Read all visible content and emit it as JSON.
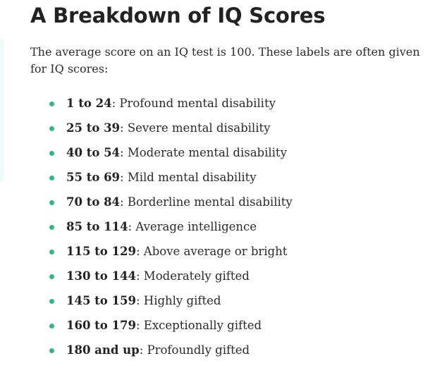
{
  "article": {
    "title": "A Breakdown of IQ Scores",
    "intro": "The average score on an IQ test is 100. These labels are often given for IQ scores:",
    "colors": {
      "bullet": "#2fb884",
      "accent_bar": "#eefafa"
    },
    "items": [
      {
        "range": "1 to 24",
        "label": ": Profound mental disability"
      },
      {
        "range": "25 to 39",
        "label": ": Severe mental disability"
      },
      {
        "range": "40 to 54",
        "label": ": Moderate mental disability"
      },
      {
        "range": "55 to 69",
        "label": ": Mild mental disability"
      },
      {
        "range": "70 to 84",
        "label": ": Borderline mental disability"
      },
      {
        "range": "85 to 114",
        "label": ": Average intelligence"
      },
      {
        "range": "115 to 129",
        "label": ": Above average or bright"
      },
      {
        "range": "130 to 144",
        "label": ": Moderately gifted"
      },
      {
        "range": "145 to 159",
        "label": ": Highly gifted"
      },
      {
        "range": "160 to 179",
        "label": ": Exceptionally gifted"
      },
      {
        "range": "180 and up",
        "label": ": Profoundly gifted"
      }
    ]
  }
}
